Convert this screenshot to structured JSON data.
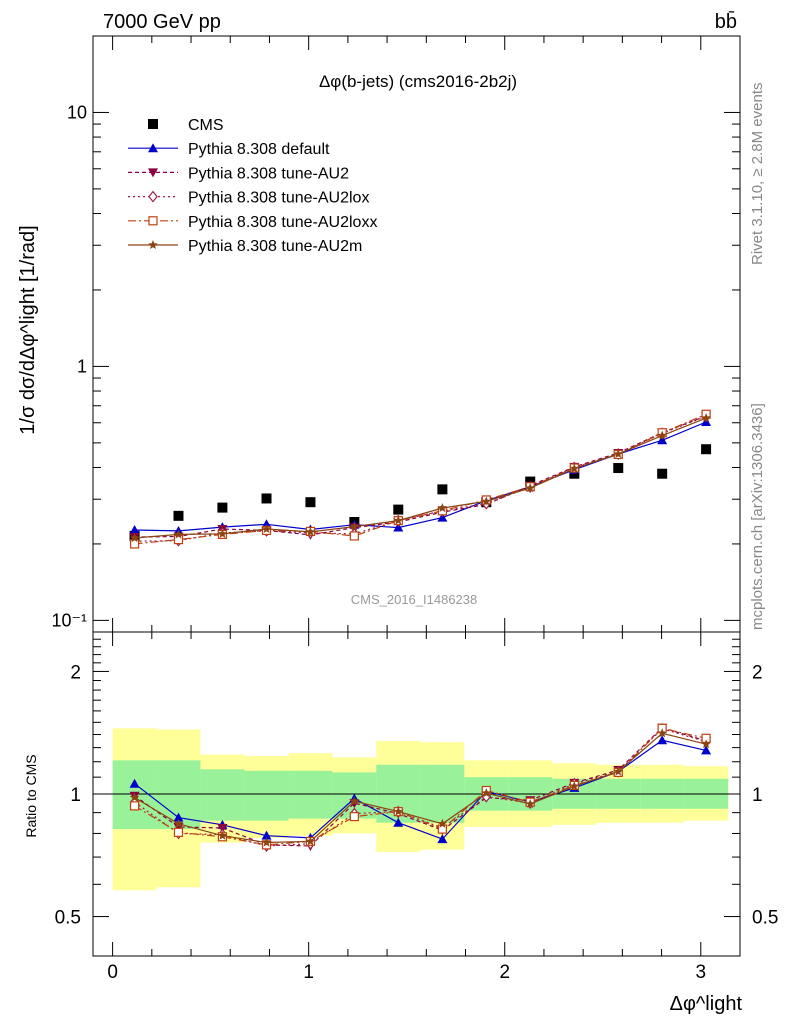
{
  "header": {
    "energy_label": "7000 GeV pp",
    "process_label": "bb̄",
    "plot_title": "Δφ(b-jets) (cms2016-2b2j)",
    "watermark": "CMS_2016_I1486238",
    "rivet_label": "Rivet 3.1.10, ≥ 2.8M events",
    "url_label": "mcplots.cern.ch [arXiv:1306.3436]"
  },
  "colors": {
    "cms": "#000000",
    "default": "#0000cc",
    "au2": "#8b0040",
    "au2lox": "#a0204a",
    "au2loxx": "#c04010",
    "au2m": "#8b4513",
    "band_inner": "#99f299",
    "band_outer": "#ffff99"
  },
  "chart_data": [
    {
      "type": "line",
      "name": "main",
      "ylabel": "1/σ dσ/dΔφ^light [1/rad]",
      "yscale": "log",
      "ylim": [
        0.09,
        20
      ],
      "xlim": [
        -0.1,
        3.2
      ],
      "y_ticks": [
        "10⁻¹",
        "1",
        "10"
      ],
      "legend_position": "top-left",
      "x": [
        0.112,
        0.336,
        0.56,
        0.785,
        1.009,
        1.233,
        1.457,
        1.682,
        1.906,
        2.13,
        2.355,
        2.579,
        2.803,
        3.027
      ],
      "series": [
        {
          "name": "CMS",
          "key": "cms",
          "marker": "square",
          "values": [
            0.215,
            0.258,
            0.278,
            0.302,
            0.292,
            0.244,
            0.273,
            0.328,
            0.292,
            0.352,
            0.378,
            0.398,
            0.378,
            0.472
          ]
        },
        {
          "name": "Pythia 8.308 default",
          "key": "default",
          "marker": "triangle",
          "dash": "",
          "values": [
            0.227,
            0.225,
            0.233,
            0.239,
            0.228,
            0.238,
            0.232,
            0.254,
            0.296,
            0.336,
            0.392,
            0.452,
            0.512,
            0.604
          ]
        },
        {
          "name": "Pythia 8.308 tune-AU2",
          "key": "au2",
          "marker": "triangle-down",
          "dash": "4,3",
          "values": [
            0.213,
            0.214,
            0.229,
            0.226,
            0.217,
            0.232,
            0.244,
            0.267,
            0.286,
            0.339,
            0.402,
            0.456,
            0.549,
            0.638
          ]
        },
        {
          "name": "Pythia 8.308 tune-AU2lox",
          "key": "au2lox",
          "marker": "diamond",
          "dash": "2,3",
          "values": [
            0.205,
            0.206,
            0.221,
            0.225,
            0.221,
            0.219,
            0.247,
            0.27,
            0.288,
            0.335,
            0.4,
            0.452,
            0.545,
            0.636
          ]
        },
        {
          "name": "Pythia 8.308 tune-AU2loxx",
          "key": "au2loxx",
          "marker": "square-open",
          "dash": "8,3,2,3",
          "values": [
            0.2,
            0.208,
            0.218,
            0.226,
            0.224,
            0.215,
            0.247,
            0.27,
            0.298,
            0.336,
            0.398,
            0.45,
            0.548,
            0.648
          ]
        },
        {
          "name": "Pythia 8.308 tune-AU2m",
          "key": "au2m",
          "marker": "star",
          "dash": "",
          "values": [
            0.211,
            0.218,
            0.219,
            0.229,
            0.223,
            0.234,
            0.247,
            0.277,
            0.294,
            0.332,
            0.396,
            0.452,
            0.534,
            0.626
          ]
        }
      ]
    },
    {
      "type": "line",
      "name": "ratio",
      "xlabel": "Δφ^light",
      "ylabel": "Ratio to CMS",
      "yscale": "log",
      "ylim": [
        0.4,
        2.5
      ],
      "xlim": [
        -0.1,
        3.2
      ],
      "x_ticks": [
        "0",
        "1",
        "2",
        "3"
      ],
      "y_ticks": [
        "0.5",
        "1",
        "2"
      ],
      "x": [
        0.112,
        0.336,
        0.56,
        0.785,
        1.009,
        1.233,
        1.457,
        1.682,
        1.906,
        2.13,
        2.355,
        2.579,
        2.803,
        3.027
      ],
      "bin_edges": [
        0.0,
        0.224,
        0.448,
        0.673,
        0.897,
        1.121,
        1.345,
        1.57,
        1.794,
        2.018,
        2.242,
        2.467,
        2.691,
        2.915,
        3.14
      ],
      "band_inner": [
        [
          0.82,
          1.21
        ],
        [
          0.82,
          1.21
        ],
        [
          0.86,
          1.15
        ],
        [
          0.86,
          1.14
        ],
        [
          0.87,
          1.14
        ],
        [
          0.87,
          1.13
        ],
        [
          0.85,
          1.18
        ],
        [
          0.85,
          1.18
        ],
        [
          0.91,
          1.1
        ],
        [
          0.91,
          1.1
        ],
        [
          0.92,
          1.09
        ],
        [
          0.92,
          1.09
        ],
        [
          0.92,
          1.09
        ],
        [
          0.92,
          1.09
        ]
      ],
      "band_outer": [
        [
          0.58,
          1.45
        ],
        [
          0.59,
          1.44
        ],
        [
          0.76,
          1.25
        ],
        [
          0.78,
          1.24
        ],
        [
          0.79,
          1.26
        ],
        [
          0.8,
          1.23
        ],
        [
          0.72,
          1.35
        ],
        [
          0.73,
          1.34
        ],
        [
          0.83,
          1.21
        ],
        [
          0.83,
          1.21
        ],
        [
          0.84,
          1.19
        ],
        [
          0.85,
          1.18
        ],
        [
          0.85,
          1.18
        ],
        [
          0.86,
          1.17
        ]
      ],
      "series": [
        {
          "name": "Pythia 8.308 default",
          "key": "default",
          "marker": "triangle",
          "dash": "",
          "values": [
            1.06,
            0.875,
            0.84,
            0.79,
            0.78,
            0.975,
            0.85,
            0.775,
            1.015,
            0.955,
            1.035,
            1.135,
            1.355,
            1.28
          ]
        },
        {
          "name": "Pythia 8.308 tune-AU2",
          "key": "au2",
          "marker": "triangle-down",
          "dash": "4,3",
          "values": [
            0.99,
            0.83,
            0.825,
            0.75,
            0.745,
            0.95,
            0.895,
            0.815,
            0.98,
            0.965,
            1.065,
            1.145,
            1.455,
            1.35
          ]
        },
        {
          "name": "Pythia 8.308 tune-AU2lox",
          "key": "au2lox",
          "marker": "diamond",
          "dash": "2,3",
          "values": [
            0.955,
            0.8,
            0.795,
            0.745,
            0.755,
            0.895,
            0.905,
            0.825,
            0.985,
            0.95,
            1.06,
            1.135,
            1.445,
            1.345
          ]
        },
        {
          "name": "Pythia 8.308 tune-AU2loxx",
          "key": "au2loxx",
          "marker": "square-open",
          "dash": "8,3,2,3",
          "values": [
            0.935,
            0.805,
            0.785,
            0.75,
            0.765,
            0.88,
            0.905,
            0.82,
            1.02,
            0.955,
            1.05,
            1.13,
            1.45,
            1.37
          ]
        },
        {
          "name": "Pythia 8.308 tune-AU2m",
          "key": "au2m",
          "marker": "star",
          "dash": "",
          "values": [
            0.98,
            0.845,
            0.79,
            0.76,
            0.765,
            0.96,
            0.905,
            0.845,
            1.005,
            0.945,
            1.045,
            1.135,
            1.41,
            1.325
          ]
        }
      ]
    }
  ]
}
